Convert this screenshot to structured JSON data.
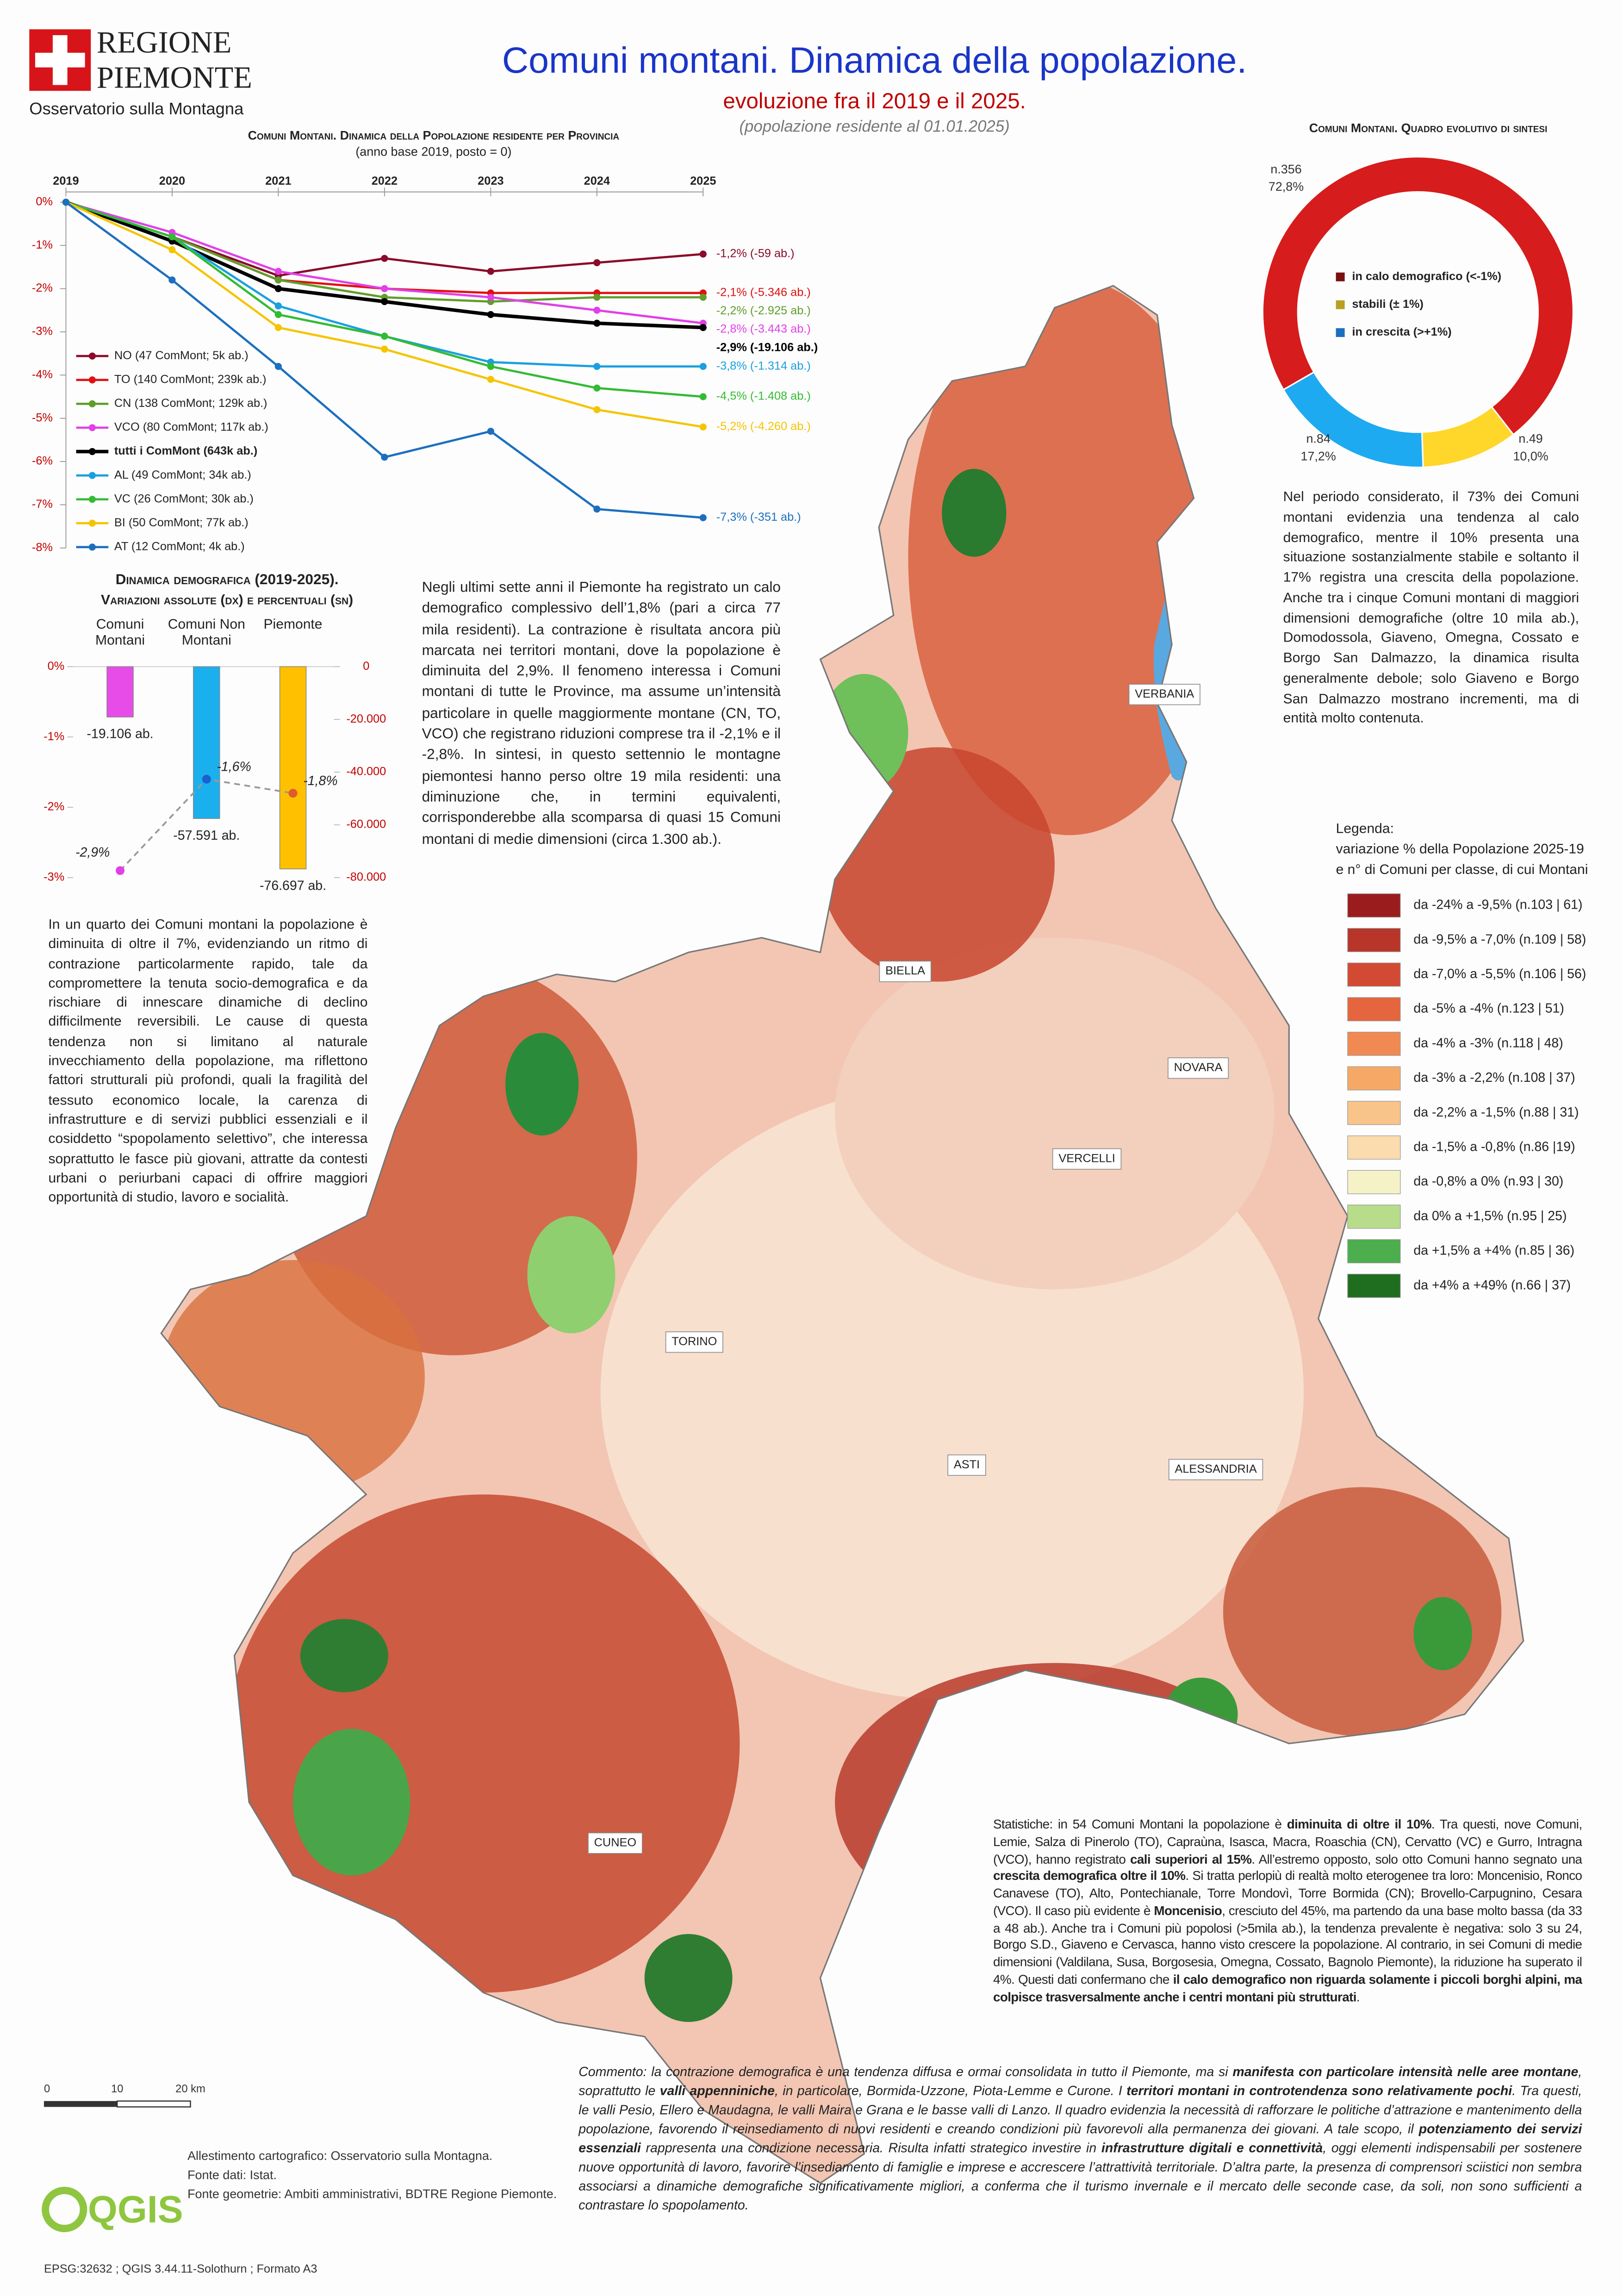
{
  "header": {
    "logo_line1": "REGIONE",
    "logo_line2": "PIEMONTE",
    "logo_subtitle": "Osservatorio sulla Montagna",
    "title": "Comuni montani. Dinamica della popolazione.",
    "subtitle": "evoluzione fra il 2019 e il 2025.",
    "note": "(popolazione residente al 01.01.2025)"
  },
  "chart_data": [
    {
      "type": "line",
      "title": "Comuni Montani. Dinamica della Popolazione residente per Provincia",
      "subtitle": "(anno base 2019, posto = 0)",
      "categories": [
        "2019",
        "2020",
        "2021",
        "2022",
        "2023",
        "2024",
        "2025"
      ],
      "ylim": [
        -8,
        0
      ],
      "yticks": [
        {
          "value": 0,
          "label": "0%"
        },
        {
          "value": -1,
          "label": "-1%"
        },
        {
          "value": -2,
          "label": "-2%"
        },
        {
          "value": -3,
          "label": "-3%"
        },
        {
          "value": -4,
          "label": "-4%"
        },
        {
          "value": -5,
          "label": "-5%"
        },
        {
          "value": -6,
          "label": "-6%"
        },
        {
          "value": -7,
          "label": "-7%"
        },
        {
          "value": -8,
          "label": "-8%"
        }
      ],
      "series": [
        {
          "name": "NO (47 ComMont; 5k ab.)",
          "color": "#8b0a2a",
          "values": [
            0,
            -0.8,
            -1.7,
            -1.3,
            -1.6,
            -1.4,
            -1.2
          ],
          "end_label": "-1,2% (-59 ab.)"
        },
        {
          "name": "TO (140 ComMont; 239k ab.)",
          "color": "#e01010",
          "values": [
            0,
            -0.8,
            -1.8,
            -2.0,
            -2.1,
            -2.1,
            -2.1
          ],
          "end_label": "-2,1% (-5.346 ab.)"
        },
        {
          "name": "CN (138 ComMont; 129k ab.)",
          "color": "#5f9e2a",
          "values": [
            0,
            -0.8,
            -1.8,
            -2.2,
            -2.3,
            -2.2,
            -2.2
          ],
          "end_label": "-2,2% (-2.925 ab.)"
        },
        {
          "name": "VCO (80 ComMont; 117k ab.)",
          "color": "#e040e8",
          "values": [
            0,
            -0.7,
            -1.6,
            -2.0,
            -2.2,
            -2.5,
            -2.8
          ],
          "end_label": "-2,8% (-3.443 ab.)"
        },
        {
          "name": "tutti i ComMont (643k ab.)",
          "color": "#000000",
          "bold": true,
          "values": [
            0,
            -0.9,
            -2.0,
            -2.3,
            -2.6,
            -2.8,
            -2.9
          ],
          "end_label": "-2,9% (-19.106 ab.)"
        },
        {
          "name": "AL (49 ComMont; 34k ab.)",
          "color": "#1a9fe0",
          "values": [
            0,
            -0.8,
            -2.4,
            -3.1,
            -3.7,
            -3.8,
            -3.8
          ],
          "end_label": "-3,8% (-1.314 ab.)"
        },
        {
          "name": "VC (26 ComMont; 30k ab.)",
          "color": "#33bb33",
          "values": [
            0,
            -0.8,
            -2.6,
            -3.1,
            -3.8,
            -4.3,
            -4.5
          ],
          "end_label": "-4,5% (-1.408 ab.)"
        },
        {
          "name": "BI (50 ComMont; 77k ab.)",
          "color": "#f5c400",
          "values": [
            0,
            -1.1,
            -2.9,
            -3.4,
            -4.1,
            -4.8,
            -5.2
          ],
          "end_label": "-5,2% (-4.260 ab.)"
        },
        {
          "name": "AT (12 ComMont; 4k ab.)",
          "color": "#1c6fbf",
          "values": [
            0,
            -1.8,
            -3.8,
            -5.9,
            -5.3,
            -7.1,
            -7.3
          ],
          "end_label": "-7,3% (-351 ab.)"
        }
      ]
    },
    {
      "type": "bar",
      "title": "Dinamica demografica (2019-2025).",
      "subtitle": "Variazioni assolute (dx) e percentuali (sn)",
      "categories": [
        "Comuni Montani",
        "Comuni Non Montani",
        "Piemonte"
      ],
      "ylim": [
        -3,
        0
      ],
      "yticks": [
        {
          "value": 0,
          "label": "0%"
        },
        {
          "value": -1,
          "label": "-1%"
        },
        {
          "value": -2,
          "label": "-2%"
        },
        {
          "value": -3,
          "label": "-3%"
        }
      ],
      "y2lim": [
        -80000,
        0
      ],
      "y2ticks": [
        0,
        {
          "value": -20000,
          "label": "-20.000"
        },
        {
          "value": -40000,
          "label": "-40.000"
        },
        {
          "value": -60000,
          "label": "-60.000"
        },
        {
          "value": -80000,
          "label": "-80.000"
        }
      ],
      "series": [
        {
          "type": "bar",
          "axis": "y2",
          "colors": [
            "#e84ce8",
            "#1ab0ee",
            "#ffc000"
          ],
          "values": [
            -19106,
            -57591,
            -76697
          ],
          "value_labels": [
            "-19.106 ab.",
            "-57.591 ab.",
            "-76.697 ab."
          ]
        },
        {
          "type": "line",
          "colors": [
            "#e040e8",
            "#1c5fcf",
            "#e05a2a"
          ],
          "values": [
            -2.9,
            -1.6,
            -1.8
          ],
          "value_labels": [
            "-2,9%",
            "-1,6%",
            "-1,8%"
          ]
        }
      ]
    },
    {
      "type": "pie",
      "title": "Comuni Montani. Quadro evolutivo di sintesi",
      "categories": [
        "in calo demografico (<-1%)",
        "stabili (± 1%)",
        "in crescita (>+1%)"
      ],
      "values": [
        72.8,
        10.0,
        17.2
      ],
      "value_labels": [
        "72,8%",
        "10,0%",
        "17,2%"
      ],
      "counts": [
        356,
        49,
        84
      ],
      "count_labels": [
        "n.356",
        "n.49",
        "n.84"
      ],
      "colors": [
        "#d61c1c",
        "#ffd62a",
        "#1eaaf0"
      ],
      "legend_colors": [
        "#7a1010",
        "#b8a020",
        "#1c6fbf"
      ]
    }
  ],
  "paragraphs": {
    "intro": "Negli ultimi sette anni il Piemonte ha registrato un calo demografico complessivo dell’1,8% (pari a circa 77 mila residenti). La contrazione è risultata ancora più marcata nei territori montani, dove la popolazione è diminuita del 2,9%. Il fenomeno interessa i Comuni montani di tutte le Province, ma assume un’intensità particolare in quelle maggiormente montane (CN, TO, VCO) che registrano riduzioni comprese tra il -2,1% e il -2,8%. In sintesi, in questo settennio le montagne piemontesi hanno perso oltre 19 mila residenti: una diminuzione che, in termini equivalenti, corrisponderebbe alla scomparsa di quasi 15 Comuni montani di medie dimensioni (circa 1.300 ab.).",
    "left": "In un quarto dei Comuni montani la popolazione è diminuita di oltre il 7%, evidenziando un ritmo di contrazione particolarmente rapido, tale da compromettere la tenuta socio-demografica e da rischiare di innescare dinamiche di declino difficilmente reversibili. Le cause di questa tendenza non si limitano al naturale invecchiamento della popolazione, ma riflettono fattori strutturali più profondi, quali la fragilità del tessuto economico locale, la carenza di infrastrutture e di servizi pubblici essenziali e il cosiddetto “spopolamento selettivo”, che interessa soprattutto le fasce più giovani, attratte da contesti urbani o periurbani capaci di offrire maggiori opportunità di studio, lavoro e socialità.",
    "right": "Nel periodo considerato, il 73% dei Comuni montani evidenzia una tendenza al calo demografico, mentre il 10% presenta una situazione sostanzialmente stabile e soltanto il 17% registra una crescita della popolazione. Anche tra i cinque Comuni montani di maggiori dimensioni demografiche (oltre 10 mila ab.), Domodossola, Giaveno, Omegna, Cossato e Borgo San Dalmazzo, la dinamica risulta generalmente debole; solo Giaveno e Borgo San Dalmazzo mostrano incrementi, ma di entità molto contenuta.",
    "statistics": [
      {
        "text": "Statistiche: in 54 Comuni Montani la popolazione è "
      },
      {
        "text": "diminuita di oltre il 10%",
        "bold": true
      },
      {
        "text": ". Tra questi, nove Comuni, Lemie, Salza di Pinerolo (TO), Capraùna, Isasca, Macra, Roaschia (CN), Cervatto (VC) e Gurro, Intragna (VCO), hanno registrato "
      },
      {
        "text": "cali superiori al 15%",
        "bold": true
      },
      {
        "text": ". All’estremo opposto, solo otto Comuni hanno segnato una "
      },
      {
        "text": "crescita demografica oltre il 10%",
        "bold": true
      },
      {
        "text": ". Si tratta perlopiù di realtà molto eterogenee tra loro: Moncenisio, Ronco Canavese (TO), Alto, Pontechianale, Torre Mondovì, Torre Bormida (CN); Brovello-Carpugnino, Cesara (VCO). Il caso più evidente è "
      },
      {
        "text": "Moncenisio",
        "bold": true
      },
      {
        "text": ", cresciuto del 45%, ma partendo da una base molto bassa (da 33 a 48 ab.). Anche tra i Comuni più popolosi (>5mila ab.), la tendenza prevalente è negativa: solo 3 su 24, Borgo S.D., Giaveno e Cervasca, hanno visto crescere la popolazione. Al contrario, in sei Comuni di medie dimensioni (Valdilana, Susa, Borgosesia, Omegna, Cossato, Bagnolo Piemonte), la riduzione ha superato il 4%. Questi dati confermano che "
      },
      {
        "text": "il calo demografico non riguarda solamente i piccoli borghi alpini, ma colpisce trasversalmente anche i centri montani più strutturati",
        "bold": true
      },
      {
        "text": "."
      }
    ],
    "comment": [
      {
        "text": "Commento: la contrazione demografica è una tendenza diffusa e ormai consolidata in tutto il Piemonte, ma si "
      },
      {
        "text": "manifesta con particolare intensità nelle aree montane",
        "bold": true
      },
      {
        "text": ", soprattutto le "
      },
      {
        "text": "valli appenniniche",
        "bold": true
      },
      {
        "text": ", in particolare, Bormida-Uzzone, Piota-Lemme e Curone. I "
      },
      {
        "text": "territori montani in controtendenza sono relativamente pochi",
        "bold": true
      },
      {
        "text": ". Tra questi, le valli Pesio, Ellero e Maudagna, le valli Maira e Grana e le basse valli di Lanzo. Il quadro evidenzia la necessità di rafforzare le politiche d’attrazione e mantenimento della popolazione, favorendo il reinsediamento di nuovi residenti e creando condizioni più favorevoli alla permanenza dei giovani. A tale scopo, il "
      },
      {
        "text": "potenziamento dei servizi essenziali",
        "bold": true
      },
      {
        "text": " rappresenta una condizione necessaria. Risulta infatti strategico investire in "
      },
      {
        "text": "infrastrutture digitali e connettività",
        "bold": true
      },
      {
        "text": ", oggi elementi indispensabili per sostenere nuove opportunità di lavoro, favorire l’insediamento di famiglie e imprese e accrescere l’attrattività territoriale. D’altra parte, la presenza di comprensori sciistici non sembra associarsi a dinamiche demografiche significativamente migliori, a conferma che il turismo invernale e il mercato delle seconde case, da soli, non sono sufficienti a contrastare lo spopolamento."
      }
    ]
  },
  "map": {
    "legend": {
      "title": "Legenda:",
      "subtitle_1": "variazione % della Popolazione 2025-19",
      "subtitle_2": "e n° di Comuni per classe, di cui Montani",
      "items": [
        {
          "label": "da -24% a -9,5% (n.103 | 61)",
          "color": "#9b1c1c"
        },
        {
          "label": "da -9,5% a -7,0% (n.109 | 58)",
          "color": "#b8352a"
        },
        {
          "label": "da -7,0% a -5,5% (n.106 | 56)",
          "color": "#d24a33"
        },
        {
          "label": "da -5% a -4% (n.123 | 51)",
          "color": "#e5663e"
        },
        {
          "label": "da -4% a -3% (n.118 | 48)",
          "color": "#f08a52"
        },
        {
          "label": "da -3% a -2,2% (n.108 | 37)",
          "color": "#f6a967"
        },
        {
          "label": "da -2,2% a -1,5% (n.88 | 31)",
          "color": "#f9c48a"
        },
        {
          "label": "da -1,5% a -0,8% (n.86 |19)",
          "color": "#fbdcae"
        },
        {
          "label": "da -0,8% a 0% (n.93 | 30)",
          "color": "#f5f2c8"
        },
        {
          "label": "da 0% a +1,5% (n.95 | 25)",
          "color": "#b7dc8a"
        },
        {
          "label": "da +1,5% a +4% (n.85 | 36)",
          "color": "#4cae4c"
        },
        {
          "label": "da +4% a +49% (n.66 | 37)",
          "color": "#1f6e1f"
        }
      ]
    },
    "city_labels": [
      "VERBANIA",
      "BIELLA",
      "NOVARA",
      "VERCELLI",
      "TORINO",
      "ASTI",
      "ALESSANDRIA",
      "CUNEO"
    ]
  },
  "footer": {
    "scale_labels": [
      "0",
      "10",
      "20 km"
    ],
    "logo": "QGIS",
    "credits": [
      "Allestimento cartografico: Osservatorio sulla Montagna.",
      "Fonte dati: Istat.",
      "Fonte geometrie: Ambiti amministrativi, BDTRE Regione Piemonte."
    ],
    "epsg": "EPSG:32632 ; QGIS 3.44.11-Solothurn ; Formato A3"
  }
}
